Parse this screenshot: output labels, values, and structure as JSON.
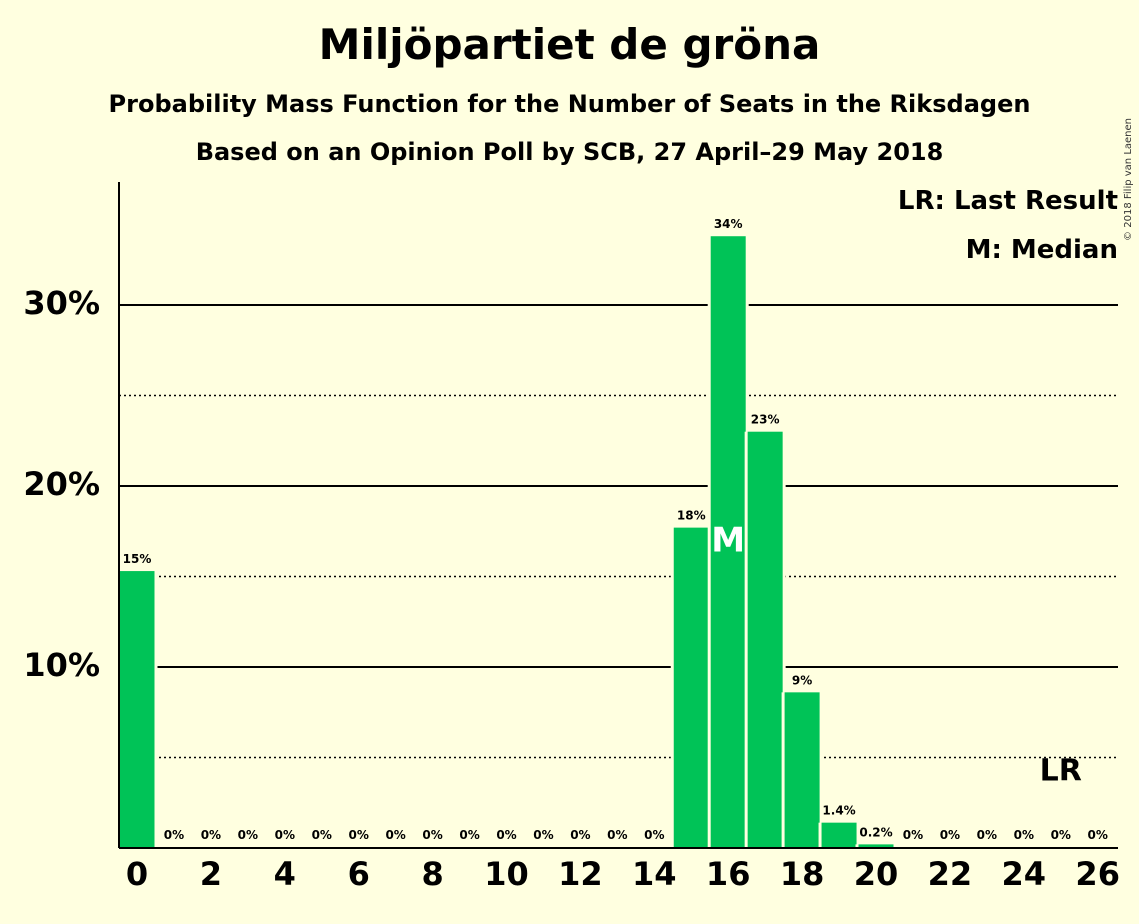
{
  "title": "Miljöpartiet de gröna",
  "subtitle1": "Probability Mass Function for the Number of Seats in the Riksdagen",
  "subtitle2": "Based on an Opinion Poll by SCB, 27 April–29 May 2018",
  "copyright": "© 2018 Filip van Laenen",
  "legend": {
    "lr": "LR: Last Result",
    "m": "M: Median"
  },
  "colors": {
    "bar": "#00c357",
    "background": "#ffffe0"
  },
  "chart_data": {
    "type": "bar",
    "x": [
      0,
      1,
      2,
      3,
      4,
      5,
      6,
      7,
      8,
      9,
      10,
      11,
      12,
      13,
      14,
      15,
      16,
      17,
      18,
      19,
      20,
      21,
      22,
      23,
      24,
      25,
      26
    ],
    "values": [
      15.3,
      0,
      0,
      0,
      0,
      0,
      0,
      0,
      0,
      0,
      0,
      0,
      0,
      0,
      0,
      17.7,
      33.8,
      23.0,
      8.6,
      1.4,
      0.2,
      0,
      0,
      0,
      0,
      0,
      0
    ],
    "bar_labels": [
      "15%",
      "0%",
      "0%",
      "0%",
      "0%",
      "0%",
      "0%",
      "0%",
      "0%",
      "0%",
      "0%",
      "0%",
      "0%",
      "0%",
      "0%",
      "18%",
      "34%",
      "23%",
      "9%",
      "1.4%",
      "0.2%",
      "0%",
      "0%",
      "0%",
      "0%",
      "0%",
      "0%"
    ],
    "x_ticks": [
      "0",
      "2",
      "4",
      "6",
      "8",
      "10",
      "12",
      "14",
      "16",
      "18",
      "20",
      "22",
      "24",
      "26"
    ],
    "y_ticks": [
      "10%",
      "20%",
      "30%"
    ],
    "ylim": [
      0,
      37
    ],
    "grid": "solid at 10% steps, dotted at 5% offsets",
    "median_seat": 16,
    "median_label": "M",
    "last_result_seat": 25,
    "last_result_label": "LR"
  }
}
